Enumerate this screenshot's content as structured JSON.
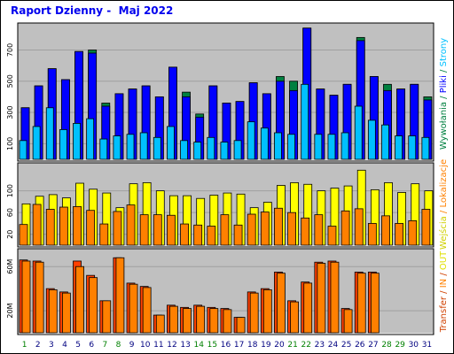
{
  "title": "Raport Dzienny -  Maj 2022",
  "colors": {
    "title": "#0000ee",
    "panel_bg": "#c0c0c0",
    "grid": "#a0a0a0",
    "day_normal": "#006000",
    "day_weekend": "#008000",
    "bar_edge": "#000000"
  },
  "chart_data": [
    {
      "type": "bar",
      "title": "",
      "yticks": [
        "100",
        "300",
        "500",
        "700"
      ],
      "ylim": [
        0,
        850
      ],
      "grid": true,
      "categories": [
        "1",
        "2",
        "3",
        "4",
        "5",
        "6",
        "7",
        "8",
        "9",
        "10",
        "11",
        "12",
        "13",
        "14",
        "15",
        "16",
        "17",
        "18",
        "19",
        "20",
        "21",
        "22",
        "23",
        "24",
        "25",
        "26",
        "27",
        "28",
        "29",
        "30",
        "31"
      ],
      "series": [
        {
          "name": "Wywołania",
          "color": "#008040",
          "values": [
            330,
            470,
            580,
            510,
            690,
            700,
            360,
            420,
            450,
            470,
            400,
            590,
            430,
            290,
            470,
            360,
            370,
            490,
            420,
            530,
            500,
            840,
            450,
            410,
            480,
            780,
            530,
            480,
            450,
            480,
            400
          ]
        },
        {
          "name": "Pliki",
          "color": "#0000ff",
          "values": [
            330,
            470,
            580,
            510,
            690,
            680,
            340,
            420,
            450,
            470,
            400,
            590,
            400,
            270,
            470,
            360,
            370,
            490,
            420,
            500,
            440,
            840,
            450,
            410,
            480,
            760,
            530,
            440,
            450,
            480,
            380
          ]
        },
        {
          "name": "Strony",
          "color": "#00c0ff",
          "values": [
            120,
            210,
            330,
            190,
            230,
            260,
            130,
            150,
            160,
            170,
            140,
            210,
            120,
            110,
            140,
            110,
            120,
            240,
            200,
            170,
            160,
            480,
            160,
            160,
            170,
            340,
            250,
            220,
            150,
            150,
            140
          ]
        }
      ]
    },
    {
      "type": "bar",
      "title": "",
      "yticks": [
        "20",
        "60",
        "100"
      ],
      "ylim": [
        0,
        145
      ],
      "grid": true,
      "categories": [
        "1",
        "2",
        "3",
        "4",
        "5",
        "6",
        "7",
        "8",
        "9",
        "10",
        "11",
        "12",
        "13",
        "14",
        "15",
        "16",
        "17",
        "18",
        "19",
        "20",
        "21",
        "22",
        "23",
        "24",
        "25",
        "26",
        "27",
        "28",
        "29",
        "30",
        "31"
      ],
      "series": [
        {
          "name": "Wejścia",
          "color": "#ffff00",
          "values": [
            76,
            90,
            93,
            87,
            114,
            103,
            96,
            69,
            113,
            115,
            100,
            91,
            91,
            86,
            92,
            96,
            94,
            69,
            79,
            110,
            115,
            112,
            100,
            105,
            109,
            138,
            102,
            115,
            97,
            113,
            100
          ]
        },
        {
          "name": "Lokalizacje",
          "color": "#ff8000",
          "values": [
            38,
            75,
            66,
            70,
            71,
            64,
            39,
            62,
            74,
            56,
            56,
            55,
            39,
            37,
            35,
            56,
            37,
            57,
            61,
            68,
            60,
            50,
            56,
            35,
            63,
            67,
            40,
            54,
            40,
            45,
            66
          ]
        }
      ]
    },
    {
      "type": "bar",
      "title": "",
      "yticks": [
        "20M",
        "60M"
      ],
      "ylim": [
        0,
        73
      ],
      "grid": true,
      "categories": [
        "1",
        "2",
        "3",
        "4",
        "5",
        "6",
        "7",
        "8",
        "9",
        "10",
        "11",
        "12",
        "13",
        "14",
        "15",
        "16",
        "17",
        "18",
        "19",
        "20",
        "21",
        "22",
        "23",
        "24",
        "25",
        "26",
        "27",
        "28",
        "29",
        "30",
        "31"
      ],
      "series": [
        {
          "name": "Transfer",
          "color": "#ff4000",
          "values": [
            66,
            65,
            40,
            37,
            65,
            52,
            29,
            68,
            45,
            42,
            16,
            25,
            23,
            25,
            23,
            22,
            14,
            37,
            40,
            55,
            29,
            46,
            64,
            65,
            22,
            55,
            55,
            0,
            0,
            0,
            0
          ]
        },
        {
          "name": "IN",
          "color": "#ff8000",
          "values": [
            65,
            64,
            39,
            36,
            60,
            50,
            29,
            68,
            44,
            41,
            16,
            24,
            22,
            24,
            22,
            21,
            14,
            36,
            39,
            54,
            28,
            45,
            63,
            64,
            21,
            54,
            54,
            0,
            0,
            0,
            0
          ]
        },
        {
          "name": "OUT",
          "color": "#ffff80",
          "values": [
            0,
            0,
            0,
            0,
            0,
            0,
            0,
            0,
            0,
            0,
            0,
            0,
            0,
            0,
            0,
            0,
            0,
            0,
            0,
            0,
            0,
            0,
            0,
            0,
            0,
            0,
            0,
            0,
            0,
            0,
            0
          ]
        }
      ]
    }
  ],
  "x_labels": [
    {
      "text": "1",
      "weekend": true
    },
    {
      "text": "2",
      "weekend": false
    },
    {
      "text": "3",
      "weekend": false
    },
    {
      "text": "4",
      "weekend": false
    },
    {
      "text": "5",
      "weekend": false
    },
    {
      "text": "6",
      "weekend": false
    },
    {
      "text": "7",
      "weekend": true
    },
    {
      "text": "8",
      "weekend": true
    },
    {
      "text": "9",
      "weekend": false
    },
    {
      "text": "10",
      "weekend": false
    },
    {
      "text": "11",
      "weekend": false
    },
    {
      "text": "12",
      "weekend": false
    },
    {
      "text": "13",
      "weekend": false
    },
    {
      "text": "14",
      "weekend": true
    },
    {
      "text": "15",
      "weekend": true
    },
    {
      "text": "16",
      "weekend": false
    },
    {
      "text": "17",
      "weekend": false
    },
    {
      "text": "18",
      "weekend": false
    },
    {
      "text": "19",
      "weekend": false
    },
    {
      "text": "20",
      "weekend": false
    },
    {
      "text": "21",
      "weekend": true
    },
    {
      "text": "22",
      "weekend": true
    },
    {
      "text": "23",
      "weekend": false
    },
    {
      "text": "24",
      "weekend": false
    },
    {
      "text": "25",
      "weekend": false
    },
    {
      "text": "26",
      "weekend": false
    },
    {
      "text": "27",
      "weekend": false
    },
    {
      "text": "28",
      "weekend": true
    },
    {
      "text": "29",
      "weekend": true
    },
    {
      "text": "30",
      "weekend": false
    },
    {
      "text": "31",
      "weekend": false
    }
  ],
  "legend_right": [
    {
      "panel": 0,
      "parts": [
        {
          "text": "Wywołania",
          "color": "#008040"
        },
        {
          "text": " / ",
          "color": "#008040"
        },
        {
          "text": "Pliki",
          "color": "#0000ff"
        },
        {
          "text": " / ",
          "color": "#008040"
        },
        {
          "text": "Strony",
          "color": "#00c0ff"
        }
      ]
    },
    {
      "panel": 1,
      "parts": [
        {
          "text": "Wejścia",
          "color": "#d0d000"
        },
        {
          "text": " / ",
          "color": "#ff8000"
        },
        {
          "text": "Lokalizacje",
          "color": "#ff8000"
        }
      ]
    },
    {
      "panel": 2,
      "parts": [
        {
          "text": "Transfer",
          "color": "#d04000"
        },
        {
          "text": " / ",
          "color": "#d04000"
        },
        {
          "text": "IN",
          "color": "#ff8000"
        },
        {
          "text": " / ",
          "color": "#d04000"
        },
        {
          "text": "OUT",
          "color": "#e0e000"
        }
      ]
    }
  ]
}
